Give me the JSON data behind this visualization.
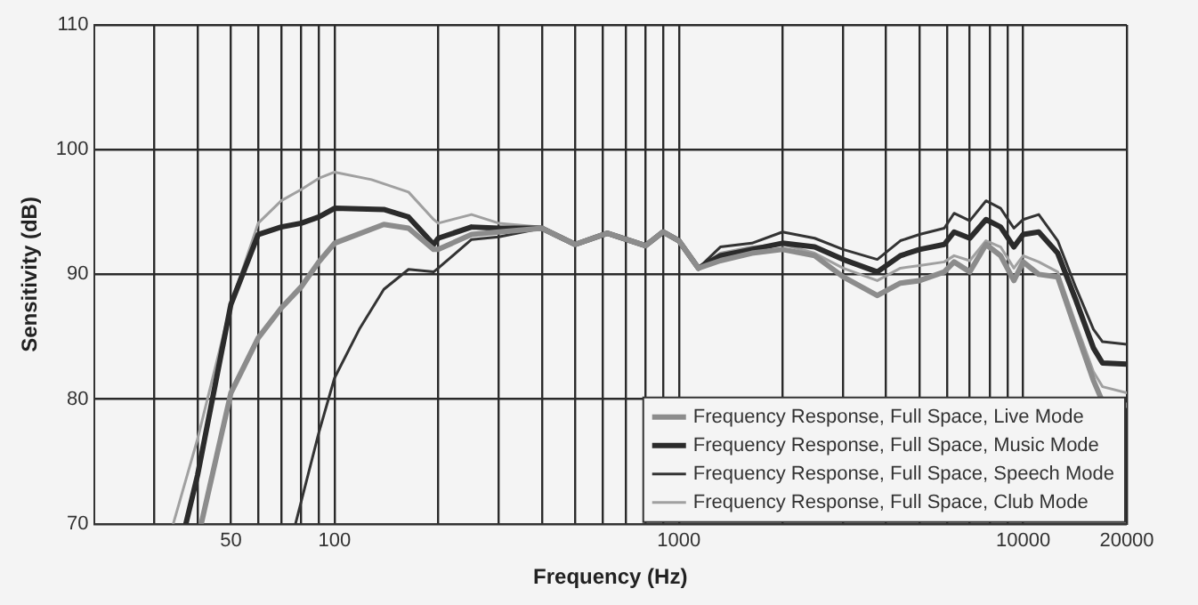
{
  "chart_data": {
    "type": "line",
    "xlabel": "Frequency (Hz)",
    "ylabel": "Sensitivity (dB)",
    "log": "x",
    "grid": true,
    "legend": "bottom right",
    "marker": "none",
    "line_style": "solid",
    "xlim": [
      20,
      20000
    ],
    "ylim": [
      70,
      110
    ],
    "xticks": [
      {
        "value": 30,
        "label": null
      },
      {
        "value": 40,
        "label": null
      },
      50,
      {
        "value": 60,
        "label": null
      },
      {
        "value": 70,
        "label": null
      },
      {
        "value": 80,
        "label": null
      },
      {
        "value": 90,
        "label": null
      },
      100,
      {
        "value": 200,
        "label": null
      },
      {
        "value": 300,
        "label": null
      },
      {
        "value": 400,
        "label": null
      },
      {
        "value": 500,
        "label": null
      },
      {
        "value": 600,
        "label": null
      },
      {
        "value": 700,
        "label": null
      },
      {
        "value": 800,
        "label": null
      },
      {
        "value": 900,
        "label": null
      },
      1000,
      {
        "value": 2000,
        "label": null
      },
      {
        "value": 3000,
        "label": null
      },
      {
        "value": 4000,
        "label": null
      },
      {
        "value": 5000,
        "label": null
      },
      {
        "value": 6000,
        "label": null
      },
      {
        "value": 7000,
        "label": null
      },
      {
        "value": 8000,
        "label": null
      },
      {
        "value": 9000,
        "label": null
      },
      10000,
      20000
    ],
    "yticks": [
      70,
      80,
      90,
      100,
      110
    ],
    "series": [
      {
        "name": "Frequency Response, Full Space, Live Mode",
        "color": "#8c8c8c",
        "x": [
          41,
          50,
          60,
          70,
          80,
          90,
          100,
          139,
          164,
          194,
          200,
          250,
          300,
          400,
          500,
          620,
          800,
          900,
          1000,
          1140,
          1320,
          1630,
          2000,
          2480,
          3000,
          3770,
          4400,
          5000,
          5900,
          6300,
          7000,
          7800,
          8600,
          9400,
          10000,
          11100,
          12600,
          14200,
          16000,
          17000,
          20000
        ],
        "values": [
          70,
          80.5,
          84.9,
          87.3,
          89.0,
          91.0,
          92.5,
          94.0,
          93.7,
          92.0,
          92.0,
          93.2,
          93.4,
          93.7,
          92.4,
          93.3,
          92.3,
          93.4,
          92.7,
          90.5,
          91.1,
          91.7,
          92.0,
          91.5,
          89.8,
          88.3,
          89.3,
          89.5,
          90.2,
          91.0,
          90.2,
          92.4,
          91.5,
          89.5,
          91.0,
          90.0,
          89.8,
          85.6,
          81.5,
          79.8,
          79.5
        ]
      },
      {
        "name": "Frequency Response, Full Space, Music Mode",
        "color": "#2b2b2b",
        "x": [
          37,
          40,
          50,
          60,
          70,
          80,
          90,
          100,
          139,
          164,
          194,
          200,
          250,
          300,
          400,
          500,
          620,
          800,
          900,
          1000,
          1140,
          1320,
          1630,
          2000,
          2480,
          3000,
          3770,
          4400,
          5000,
          5900,
          6300,
          7000,
          7800,
          8600,
          9400,
          10000,
          11100,
          12600,
          14200,
          16000,
          17000,
          20000
        ],
        "values": [
          70,
          73.9,
          87.6,
          93.2,
          93.8,
          94.1,
          94.6,
          95.3,
          95.2,
          94.6,
          92.4,
          92.9,
          93.8,
          93.7,
          93.7,
          92.4,
          93.3,
          92.3,
          93.4,
          92.7,
          90.5,
          91.5,
          92.0,
          92.5,
          92.2,
          91.2,
          90.2,
          91.5,
          92.0,
          92.4,
          93.4,
          92.9,
          94.4,
          93.8,
          92.2,
          93.2,
          93.4,
          91.7,
          88.0,
          84.1,
          82.9,
          82.8
        ]
      },
      {
        "name": "Frequency Response, Full Space, Speech Mode",
        "color": "#333333",
        "x": [
          77,
          90,
          100,
          118,
          139,
          164,
          194,
          200,
          250,
          300,
          400,
          500,
          620,
          800,
          900,
          1000,
          1140,
          1320,
          1630,
          2000,
          2480,
          3000,
          3770,
          4400,
          5000,
          5900,
          6300,
          7000,
          7800,
          8600,
          9400,
          10000,
          11100,
          12600,
          14200,
          16000,
          17000,
          20000
        ],
        "values": [
          70,
          77.3,
          81.7,
          85.6,
          88.8,
          90.4,
          90.2,
          90.5,
          92.8,
          93.0,
          93.7,
          92.4,
          93.3,
          92.3,
          93.4,
          92.7,
          90.5,
          92.2,
          92.5,
          93.4,
          92.9,
          92.0,
          91.2,
          92.7,
          93.2,
          93.7,
          94.9,
          94.3,
          95.9,
          95.3,
          93.7,
          94.4,
          94.8,
          92.7,
          89.0,
          85.6,
          84.6,
          84.4
        ]
      },
      {
        "name": "Frequency Response, Full Space, Club Mode",
        "color": "#a0a0a0",
        "x": [
          34,
          40,
          50,
          60,
          70,
          80,
          90,
          100,
          128,
          164,
          194,
          200,
          250,
          300,
          400,
          500,
          620,
          800,
          900,
          1000,
          1140,
          1320,
          1630,
          2000,
          2480,
          3000,
          3770,
          4400,
          5000,
          5900,
          6300,
          7000,
          7800,
          8600,
          9400,
          10000,
          11100,
          12600,
          14200,
          16000,
          17000,
          20000
        ],
        "values": [
          70,
          76.8,
          87.6,
          94.1,
          95.9,
          96.8,
          97.7,
          98.2,
          97.6,
          96.6,
          94.4,
          94.1,
          94.8,
          94.1,
          93.8,
          92.4,
          93.3,
          92.3,
          93.4,
          92.7,
          90.5,
          91.7,
          92.2,
          92.4,
          91.7,
          90.5,
          89.5,
          90.5,
          90.7,
          91.0,
          91.5,
          91.1,
          92.7,
          92.2,
          90.5,
          91.5,
          91.0,
          90.2,
          86.1,
          82.2,
          81.0,
          80.5
        ]
      }
    ]
  }
}
